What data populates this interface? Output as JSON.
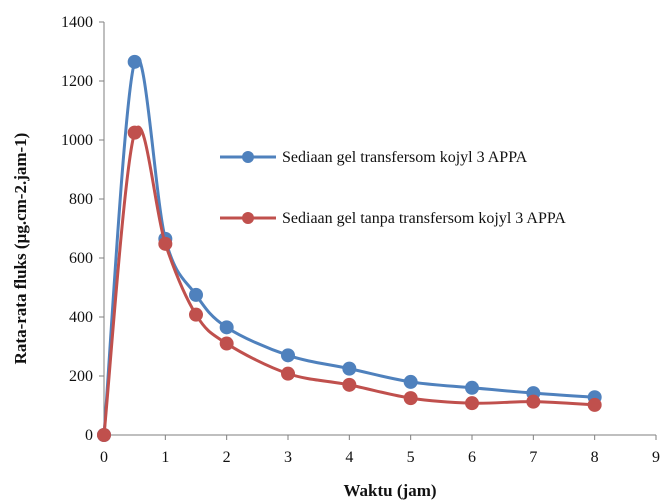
{
  "chart_data": {
    "type": "line",
    "title": "",
    "xlabel": "Waktu (jam)",
    "ylabel": "Rata-rata fluks (µg.cm-2.jam-1)",
    "xlim": [
      0,
      9
    ],
    "ylim": [
      0,
      1400
    ],
    "xticks": [
      0,
      1,
      2,
      3,
      4,
      5,
      6,
      7,
      8,
      9
    ],
    "yticks": [
      0,
      200,
      400,
      600,
      800,
      1000,
      1200,
      1400
    ],
    "grid": false,
    "legend_position": "right",
    "series": [
      {
        "name": "Sediaan gel transfersom kojyl 3 APPA",
        "color": "#4f81bd",
        "x": [
          0,
          0.5,
          1,
          1.5,
          2,
          3,
          4,
          5,
          6,
          7,
          8
        ],
        "y": [
          0,
          1265,
          665,
          475,
          365,
          270,
          225,
          180,
          160,
          142,
          128
        ]
      },
      {
        "name": "Sediaan gel tanpa transfersom kojyl 3 APPA",
        "color": "#c0504d",
        "x": [
          0,
          0.5,
          1,
          1.5,
          2,
          3,
          4,
          5,
          6,
          7,
          8
        ],
        "y": [
          0,
          1025,
          648,
          408,
          310,
          208,
          170,
          125,
          108,
          113,
          102
        ]
      }
    ]
  }
}
